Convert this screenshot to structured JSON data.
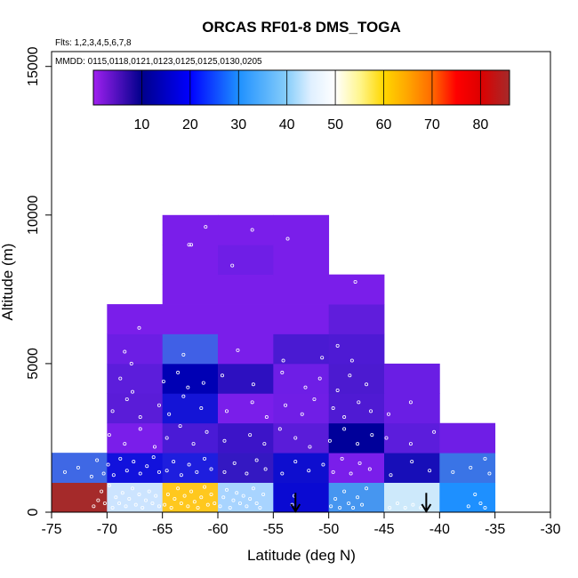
{
  "chart_data": {
    "type": "heatmap",
    "title": "ORCAS RF01-8 DMS_TOGA",
    "notes": {
      "flights": "Flts: 1,2,3,4,5,6,7,8",
      "dates": "MMDD: 0115,0118,0121,0123,0125,0125,0130,0205"
    },
    "xlabel": "Latitude (deg N)",
    "ylabel": "Altitude (m)",
    "xlim": [
      -75,
      -30
    ],
    "ylim": [
      0,
      15500
    ],
    "xticks": [
      -75,
      -70,
      -65,
      -60,
      -55,
      -50,
      -45,
      -40,
      -35,
      -30
    ],
    "yticks": [
      0,
      5000,
      10000,
      15000
    ],
    "colorbar": {
      "min": 0,
      "max": 86,
      "ticks": [
        10,
        20,
        30,
        40,
        50,
        60,
        70,
        80
      ],
      "stops": [
        {
          "v": 0,
          "c": "#a020f0"
        },
        {
          "v": 10,
          "c": "#00008b"
        },
        {
          "v": 20,
          "c": "#0000ff"
        },
        {
          "v": 30,
          "c": "#1e90ff"
        },
        {
          "v": 40,
          "c": "#87cefa"
        },
        {
          "v": 45,
          "c": "#e0f0ff"
        },
        {
          "v": 50,
          "c": "#ffffff"
        },
        {
          "v": 55,
          "c": "#fff68f"
        },
        {
          "v": 60,
          "c": "#ffd700"
        },
        {
          "v": 65,
          "c": "#ffa500"
        },
        {
          "v": 70,
          "c": "#ff6a00"
        },
        {
          "v": 75,
          "c": "#ff0000"
        },
        {
          "v": 80,
          "c": "#dd0000"
        },
        {
          "v": 86,
          "c": "#a52a2a"
        }
      ]
    },
    "cells": [
      {
        "x0": -75,
        "x1": -70,
        "y0": 0,
        "y1": 1000,
        "color": "#a52a2a"
      },
      {
        "x0": -70,
        "x1": -65,
        "y0": 0,
        "y1": 1000,
        "color": "#cce4ff"
      },
      {
        "x0": -65,
        "x1": -60,
        "y0": 0,
        "y1": 1000,
        "color": "#ffc81e"
      },
      {
        "x0": -60,
        "x1": -55,
        "y0": 0,
        "y1": 1000,
        "color": "#a8d4ff"
      },
      {
        "x0": -55,
        "x1": -50,
        "y0": 0,
        "y1": 1000,
        "color": "#0a0ad2"
      },
      {
        "x0": -50,
        "x1": -45,
        "y0": 0,
        "y1": 1000,
        "color": "#4696f0"
      },
      {
        "x0": -45,
        "x1": -40,
        "y0": 0,
        "y1": 1000,
        "color": "#cde9fb"
      },
      {
        "x0": -40,
        "x1": -35,
        "y0": 0,
        "y1": 1000,
        "color": "#1e90ff"
      },
      {
        "x0": -75,
        "x1": -70,
        "y0": 1000,
        "y1": 2000,
        "color": "#3f68e5"
      },
      {
        "x0": -70,
        "x1": -65,
        "y0": 1000,
        "y1": 2000,
        "color": "#1212dc"
      },
      {
        "x0": -65,
        "x1": -60,
        "y0": 1000,
        "y1": 2000,
        "color": "#1e1ede"
      },
      {
        "x0": -60,
        "x1": -55,
        "y0": 1000,
        "y1": 2000,
        "color": "#3418c2"
      },
      {
        "x0": -55,
        "x1": -50,
        "y0": 1000,
        "y1": 2000,
        "color": "#0e0ecf"
      },
      {
        "x0": -50,
        "x1": -45,
        "y0": 1000,
        "y1": 2000,
        "color": "#7a1eea"
      },
      {
        "x0": -45,
        "x1": -40,
        "y0": 1000,
        "y1": 2000,
        "color": "#170eb8"
      },
      {
        "x0": -40,
        "x1": -35,
        "y0": 1000,
        "y1": 2000,
        "color": "#3a74e6"
      },
      {
        "x0": -70,
        "x1": -65,
        "y0": 2000,
        "y1": 3000,
        "color": "#7a1eea"
      },
      {
        "x0": -65,
        "x1": -60,
        "y0": 2000,
        "y1": 3000,
        "color": "#4a1ad6"
      },
      {
        "x0": -60,
        "x1": -55,
        "y0": 2000,
        "y1": 3000,
        "color": "#3c14c8"
      },
      {
        "x0": -55,
        "x1": -50,
        "y0": 2000,
        "y1": 3000,
        "color": "#5a1cd9"
      },
      {
        "x0": -50,
        "x1": -45,
        "y0": 2000,
        "y1": 3000,
        "color": "#00009a"
      },
      {
        "x0": -45,
        "x1": -40,
        "y0": 2000,
        "y1": 3000,
        "color": "#5c1ddc"
      },
      {
        "x0": -40,
        "x1": -35,
        "y0": 2000,
        "y1": 3000,
        "color": "#6f1ee6"
      },
      {
        "x0": -70,
        "x1": -65,
        "y0": 3000,
        "y1": 4000,
        "color": "#5a1cd8"
      },
      {
        "x0": -65,
        "x1": -60,
        "y0": 3000,
        "y1": 4000,
        "color": "#1414d6"
      },
      {
        "x0": -60,
        "x1": -55,
        "y0": 3000,
        "y1": 4000,
        "color": "#7a1eea"
      },
      {
        "x0": -55,
        "x1": -50,
        "y0": 3000,
        "y1": 4000,
        "color": "#701ee6"
      },
      {
        "x0": -50,
        "x1": -45,
        "y0": 3000,
        "y1": 4000,
        "color": "#4f1ad3"
      },
      {
        "x0": -45,
        "x1": -40,
        "y0": 3000,
        "y1": 4000,
        "color": "#6a1ee4"
      },
      {
        "x0": -70,
        "x1": -65,
        "y0": 4000,
        "y1": 5000,
        "color": "#5c1ddb"
      },
      {
        "x0": -65,
        "x1": -60,
        "y0": 4000,
        "y1": 5000,
        "color": "#0000b4"
      },
      {
        "x0": -60,
        "x1": -55,
        "y0": 4000,
        "y1": 5000,
        "color": "#2d10c0"
      },
      {
        "x0": -55,
        "x1": -50,
        "y0": 4000,
        "y1": 5000,
        "color": "#6e1ee6"
      },
      {
        "x0": -50,
        "x1": -45,
        "y0": 4000,
        "y1": 5000,
        "color": "#4c1ad0"
      },
      {
        "x0": -45,
        "x1": -40,
        "y0": 4000,
        "y1": 5000,
        "color": "#6a1ee4"
      },
      {
        "x0": -70,
        "x1": -65,
        "y0": 5000,
        "y1": 6000,
        "color": "#6c1ee4"
      },
      {
        "x0": -65,
        "x1": -60,
        "y0": 5000,
        "y1": 6000,
        "color": "#4060e6"
      },
      {
        "x0": -60,
        "x1": -55,
        "y0": 5000,
        "y1": 6000,
        "color": "#7a1eea"
      },
      {
        "x0": -55,
        "x1": -50,
        "y0": 5000,
        "y1": 6000,
        "color": "#4a1ad2"
      },
      {
        "x0": -50,
        "x1": -45,
        "y0": 5000,
        "y1": 6000,
        "color": "#4e1ad4"
      },
      {
        "x0": -70,
        "x1": -65,
        "y0": 6000,
        "y1": 7000,
        "color": "#7a1eea"
      },
      {
        "x0": -65,
        "x1": -60,
        "y0": 6000,
        "y1": 7000,
        "color": "#7a1eea"
      },
      {
        "x0": -60,
        "x1": -55,
        "y0": 6000,
        "y1": 7000,
        "color": "#7a1eea"
      },
      {
        "x0": -55,
        "x1": -50,
        "y0": 6000,
        "y1": 7000,
        "color": "#7a1eea"
      },
      {
        "x0": -50,
        "x1": -45,
        "y0": 6000,
        "y1": 7000,
        "color": "#601ddc"
      },
      {
        "x0": -65,
        "x1": -60,
        "y0": 7000,
        "y1": 8000,
        "color": "#7a1eea"
      },
      {
        "x0": -60,
        "x1": -55,
        "y0": 7000,
        "y1": 8000,
        "color": "#7a1eea"
      },
      {
        "x0": -55,
        "x1": -50,
        "y0": 7000,
        "y1": 8000,
        "color": "#7a1eea"
      },
      {
        "x0": -50,
        "x1": -45,
        "y0": 7000,
        "y1": 8000,
        "color": "#7a1eea"
      },
      {
        "x0": -65,
        "x1": -60,
        "y0": 8000,
        "y1": 9000,
        "color": "#7a1eea"
      },
      {
        "x0": -60,
        "x1": -55,
        "y0": 8000,
        "y1": 9000,
        "color": "#6f1ee6"
      },
      {
        "x0": -55,
        "x1": -50,
        "y0": 8000,
        "y1": 9000,
        "color": "#7a1eea"
      },
      {
        "x0": -65,
        "x1": -60,
        "y0": 9000,
        "y1": 10000,
        "color": "#7a1eea"
      },
      {
        "x0": -60,
        "x1": -55,
        "y0": 9000,
        "y1": 10000,
        "color": "#7a1eea"
      },
      {
        "x0": -55,
        "x1": -50,
        "y0": 9000,
        "y1": 10000,
        "color": "#7a1eea"
      }
    ],
    "arrows": [
      {
        "x": -53,
        "y_top": 650,
        "y_bottom": 0
      },
      {
        "x": -41.2,
        "y_top": 650,
        "y_bottom": 0
      }
    ],
    "samples": [
      [
        -71.2,
        200
      ],
      [
        -70.8,
        400
      ],
      [
        -70.5,
        700
      ],
      [
        -70.2,
        300
      ],
      [
        -69.8,
        900
      ],
      [
        -69.5,
        150
      ],
      [
        -69.2,
        500
      ],
      [
        -68.9,
        300
      ],
      [
        -68.6,
        650
      ],
      [
        -68.3,
        200
      ],
      [
        -68,
        450
      ],
      [
        -67.7,
        800
      ],
      [
        -67.4,
        250
      ],
      [
        -67.1,
        600
      ],
      [
        -66.8,
        150
      ],
      [
        -66.5,
        400
      ],
      [
        -66.2,
        700
      ],
      [
        -65.9,
        300
      ],
      [
        -65.6,
        550
      ],
      [
        -65.3,
        200
      ],
      [
        -64.8,
        250
      ],
      [
        -64.5,
        600
      ],
      [
        -64.2,
        150
      ],
      [
        -63.9,
        450
      ],
      [
        -63.6,
        800
      ],
      [
        -63.3,
        300
      ],
      [
        -63,
        550
      ],
      [
        -62.7,
        200
      ],
      [
        -62.4,
        700
      ],
      [
        -62.1,
        350
      ],
      [
        -61.8,
        150
      ],
      [
        -61.5,
        500
      ],
      [
        -61.2,
        850
      ],
      [
        -60.9,
        250
      ],
      [
        -60.6,
        600
      ],
      [
        -60.3,
        300
      ],
      [
        -59.8,
        200
      ],
      [
        -59.5,
        500
      ],
      [
        -59.2,
        750
      ],
      [
        -58.9,
        150
      ],
      [
        -58.6,
        400
      ],
      [
        -58.3,
        650
      ],
      [
        -58,
        300
      ],
      [
        -57.7,
        550
      ],
      [
        -57.4,
        200
      ],
      [
        -57.1,
        450
      ],
      [
        -56.8,
        800
      ],
      [
        -56.5,
        300
      ],
      [
        -56.2,
        150
      ],
      [
        -55.9,
        600
      ],
      [
        -53.3,
        250
      ],
      [
        -53.1,
        550
      ],
      [
        -49.8,
        200
      ],
      [
        -49.4,
        450
      ],
      [
        -49,
        150
      ],
      [
        -48.6,
        700
      ],
      [
        -48.2,
        300
      ],
      [
        -47.8,
        150
      ],
      [
        -47.4,
        500
      ],
      [
        -47,
        250
      ],
      [
        -46.6,
        800
      ],
      [
        -44.5,
        150
      ],
      [
        -43.8,
        300
      ],
      [
        -43.1,
        150
      ],
      [
        -42.4,
        250
      ],
      [
        -41.7,
        150
      ],
      [
        -37.4,
        200
      ],
      [
        -36.8,
        600
      ],
      [
        -36.3,
        300
      ],
      [
        -35.9,
        150
      ],
      [
        -73.8,
        1350
      ],
      [
        -72.6,
        1500
      ],
      [
        -71.4,
        1200
      ],
      [
        -70.9,
        1750
      ],
      [
        -70.3,
        1300
      ],
      [
        -69.9,
        1600
      ],
      [
        -69.4,
        1250
      ],
      [
        -68.8,
        1800
      ],
      [
        -68.2,
        1400
      ],
      [
        -67.6,
        1700
      ],
      [
        -67,
        1300
      ],
      [
        -66.4,
        1550
      ],
      [
        -65.8,
        1850
      ],
      [
        -65.3,
        1350
      ],
      [
        -64.6,
        1400
      ],
      [
        -64,
        1700
      ],
      [
        -63.3,
        1250
      ],
      [
        -62.6,
        1600
      ],
      [
        -61.9,
        1350
      ],
      [
        -61.2,
        1800
      ],
      [
        -60.6,
        1450
      ],
      [
        -59.4,
        1350
      ],
      [
        -58.5,
        1650
      ],
      [
        -57.4,
        1300
      ],
      [
        -56.5,
        1750
      ],
      [
        -55.7,
        1450
      ],
      [
        -54.2,
        1300
      ],
      [
        -53,
        1700
      ],
      [
        -51.8,
        1400
      ],
      [
        -50.5,
        1600
      ],
      [
        -49.6,
        1350
      ],
      [
        -48.8,
        1800
      ],
      [
        -48,
        1300
      ],
      [
        -47.2,
        1650
      ],
      [
        -46.3,
        1450
      ],
      [
        -44.4,
        1250
      ],
      [
        -42.5,
        1700
      ],
      [
        -40.9,
        1400
      ],
      [
        -38.8,
        1350
      ],
      [
        -37.2,
        1500
      ],
      [
        -35.9,
        1800
      ],
      [
        -35.5,
        1300
      ],
      [
        -69.8,
        2600
      ],
      [
        -68.4,
        2300
      ],
      [
        -67,
        2800
      ],
      [
        -65.7,
        2200
      ],
      [
        -64.6,
        2500
      ],
      [
        -63.4,
        2900
      ],
      [
        -62.2,
        2300
      ],
      [
        -61,
        2700
      ],
      [
        -59.4,
        2400
      ],
      [
        -57.1,
        2600
      ],
      [
        -55.8,
        2300
      ],
      [
        -54.4,
        2800
      ],
      [
        -53,
        2500
      ],
      [
        -51.7,
        2200
      ],
      [
        -49.9,
        2400
      ],
      [
        -48.6,
        2800
      ],
      [
        -47.4,
        2300
      ],
      [
        -46.1,
        2600
      ],
      [
        -44.8,
        2500
      ],
      [
        -42.6,
        2300
      ],
      [
        -40.5,
        2700
      ],
      [
        -69.5,
        3400
      ],
      [
        -68.2,
        3800
      ],
      [
        -67,
        3200
      ],
      [
        -65.3,
        3600
      ],
      [
        -64.4,
        3300
      ],
      [
        -63.1,
        3900
      ],
      [
        -61.5,
        3500
      ],
      [
        -59.2,
        3400
      ],
      [
        -56.9,
        3700
      ],
      [
        -55.6,
        3200
      ],
      [
        -53.9,
        3600
      ],
      [
        -52.4,
        3300
      ],
      [
        -51.3,
        3800
      ],
      [
        -49.6,
        3500
      ],
      [
        -48.6,
        3200
      ],
      [
        -47.3,
        3700
      ],
      [
        -46.2,
        3400
      ],
      [
        -44.6,
        3300
      ],
      [
        -42.6,
        3700
      ],
      [
        -68.8,
        4500
      ],
      [
        -67.7,
        4050
      ],
      [
        -64.9,
        4400
      ],
      [
        -63.6,
        4700
      ],
      [
        -62.7,
        4200
      ],
      [
        -61.3,
        4350
      ],
      [
        -59.6,
        4600
      ],
      [
        -56.8,
        4300
      ],
      [
        -54.2,
        4700
      ],
      [
        -52.1,
        4200
      ],
      [
        -50.8,
        4500
      ],
      [
        -49.2,
        4100
      ],
      [
        -48.1,
        4600
      ],
      [
        -46.6,
        4300
      ],
      [
        -68.4,
        5400
      ],
      [
        -67.8,
        5000
      ],
      [
        -63.1,
        5300
      ],
      [
        -58.2,
        5450
      ],
      [
        -54.1,
        5100
      ],
      [
        -50.6,
        5200
      ],
      [
        -49.2,
        5600
      ],
      [
        -47.9,
        5100
      ],
      [
        -67.1,
        6200
      ],
      [
        -47.6,
        7750
      ],
      [
        -56.9,
        9500
      ],
      [
        -53.7,
        9200
      ],
      [
        -61.1,
        9600
      ],
      [
        -62.4,
        9000
      ],
      [
        -62.6,
        9000
      ],
      [
        -58.7,
        8300
      ]
    ]
  }
}
